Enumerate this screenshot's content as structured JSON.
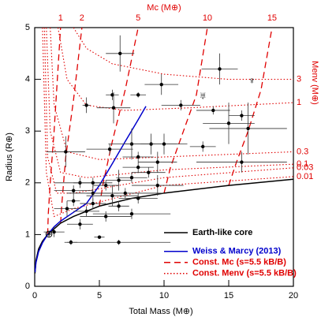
{
  "chart_data": {
    "type": "scatter",
    "xlabel": "Total Mass (M⊕)",
    "ylabel": "Radius (R⊕)",
    "top_label": "Mc (M⊕)",
    "right_label": "Menv (M⊕)",
    "xlim": [
      0,
      20
    ],
    "ylim": [
      0,
      5
    ],
    "xticks": [
      0,
      5,
      10,
      15,
      20
    ],
    "yticks": [
      0,
      1,
      2,
      3,
      4,
      5
    ],
    "legend": "lower right",
    "points": {
      "color": "#000000",
      "x": [
        6.6,
        14.3,
        9.8,
        6.0,
        8.0,
        4.0,
        6.1,
        11.3,
        13.8,
        16.0,
        15.0,
        16.5,
        2.4,
        7.5,
        9.0,
        10.0,
        13.0,
        5.8,
        8.0,
        9.5,
        16.0,
        8.0,
        8.8,
        7.5,
        6.5,
        3.5,
        4.5,
        9.5,
        5.5,
        3.0,
        4.5,
        7.0,
        6.0,
        8.0,
        3.0,
        4.5,
        6.5,
        2.5,
        4.0,
        7.5,
        5.5,
        3.5,
        5.0,
        1.5,
        2.8,
        6.5
      ],
      "values": [
        4.5,
        4.2,
        3.9,
        3.7,
        3.7,
        3.5,
        3.45,
        3.5,
        3.4,
        3.3,
        3.15,
        3.05,
        2.6,
        2.75,
        2.75,
        2.75,
        2.7,
        2.65,
        2.5,
        2.4,
        2.4,
        2.3,
        2.2,
        2.1,
        2.05,
        2.0,
        2.0,
        1.95,
        1.95,
        1.85,
        1.8,
        1.8,
        1.75,
        1.7,
        1.65,
        1.6,
        1.55,
        1.5,
        1.45,
        1.4,
        1.35,
        1.2,
        0.95,
        1.05,
        0.85,
        0.85
      ],
      "xerr": [
        1.1,
        1.4,
        1.3,
        0.5,
        0.6,
        0.3,
        1.3,
        1.5,
        1.3,
        1.0,
        2.0,
        3.0,
        1.5,
        1.8,
        2.0,
        1.8,
        1.0,
        1.8,
        1.2,
        1.5,
        3.5,
        1.2,
        1.3,
        1.2,
        1.0,
        2.0,
        1.5,
        2.0,
        1.0,
        1.5,
        2.0,
        3.0,
        2.0,
        1.5,
        0.5,
        1.0,
        0.8,
        1.0,
        1.0,
        3.0,
        2.0,
        1.0,
        0.4,
        0.8,
        0.5,
        4.0
      ],
      "yerr": [
        0.35,
        0.3,
        0.2,
        0.1,
        0.05,
        0.15,
        0.3,
        0.1,
        0.08,
        0.1,
        0.4,
        0.5,
        0.3,
        0.3,
        0.2,
        0.2,
        0.1,
        0.1,
        0.1,
        0.2,
        0.2,
        0.1,
        0.1,
        0.1,
        0.2,
        0.1,
        0.1,
        0.2,
        0.1,
        0.1,
        0.15,
        0.1,
        0.2,
        0.1,
        0.1,
        0.1,
        0.1,
        0.15,
        0.1,
        0.1,
        0.1,
        0.1,
        0.03,
        0.1,
        0.05,
        0.05
      ]
    },
    "series": [
      {
        "name": "Earth-like core",
        "color": "#000000",
        "style": "solid",
        "x": [
          0.02,
          0.1,
          0.3,
          0.6,
          1,
          2,
          3,
          5,
          7.5,
          10,
          15,
          20
        ],
        "values": [
          0.25,
          0.5,
          0.72,
          0.87,
          1.0,
          1.22,
          1.35,
          1.55,
          1.7,
          1.8,
          1.95,
          2.07
        ]
      },
      {
        "name": "Weiss & Marcy (2013)",
        "color": "#0000cc",
        "style": "solid",
        "x": [
          0.02,
          0.1,
          0.3,
          0.6,
          1,
          1.5,
          2,
          3,
          4,
          5,
          6,
          7,
          8,
          8.6
        ],
        "values": [
          0.27,
          0.46,
          0.67,
          0.84,
          1.0,
          1.15,
          1.26,
          1.43,
          1.6,
          1.95,
          2.37,
          2.8,
          3.22,
          3.48
        ]
      }
    ],
    "mc_curves": {
      "name": "Const. Mc (s=5.5 kB/B)",
      "color": "#e00000",
      "style": "dashed",
      "curves": [
        {
          "label": "1",
          "x": [
            1.0,
            1.05,
            1.2,
            1.5,
            2.0
          ],
          "values": [
            1.0,
            1.4,
            2.0,
            3.0,
            5
          ]
        },
        {
          "label": "2",
          "x": [
            2.0,
            2.1,
            2.4,
            3.0,
            3.65
          ],
          "values": [
            1.22,
            1.6,
            2.5,
            3.6,
            5
          ]
        },
        {
          "label": "5",
          "x": [
            5.0,
            5.3,
            6.0,
            7.0,
            8.0
          ],
          "values": [
            1.55,
            2.0,
            2.8,
            3.8,
            5
          ]
        },
        {
          "label": "10",
          "x": [
            10.0,
            10.5,
            11.5,
            12.5,
            13.35
          ],
          "values": [
            1.8,
            2.3,
            3.0,
            3.7,
            5
          ]
        },
        {
          "label": "15",
          "x": [
            15.0,
            15.6,
            16.5,
            17.5,
            18.35
          ],
          "values": [
            1.95,
            2.4,
            3.0,
            3.8,
            5
          ]
        }
      ]
    },
    "menv_curves": {
      "name": "Const. Menv (s=5.5 kB/B)",
      "color": "#e00000",
      "style": "dotted",
      "curves": [
        {
          "label": "3",
          "x": [
            3.0,
            4,
            6,
            10,
            15,
            20
          ],
          "values": [
            5,
            4.6,
            4.3,
            4.1,
            4.0,
            4.0
          ]
        },
        {
          "label": "1",
          "x": [
            1.8,
            2.5,
            4,
            7,
            12,
            20
          ],
          "values": [
            5,
            4.0,
            3.5,
            3.4,
            3.45,
            3.55
          ]
        },
        {
          "label": "0.3",
          "x": [
            1.2,
            1.5,
            2.5,
            5,
            10,
            20
          ],
          "values": [
            5,
            3.5,
            2.6,
            2.45,
            2.5,
            2.6
          ]
        },
        {
          "label": "0.1",
          "x": [
            0.9,
            1.2,
            2,
            4,
            10,
            20
          ],
          "values": [
            5,
            3.0,
            2.2,
            2.1,
            2.25,
            2.36
          ]
        },
        {
          "label": "0.03",
          "x": [
            0.75,
            1,
            1.7,
            3,
            10,
            20
          ],
          "values": [
            5,
            2.5,
            1.8,
            1.8,
            2.1,
            2.29
          ]
        },
        {
          "label": "0.01",
          "x": [
            0.6,
            0.9,
            1.5,
            3,
            10,
            20
          ],
          "values": [
            5,
            2.2,
            1.35,
            1.5,
            1.95,
            2.12
          ]
        }
      ]
    },
    "symbols": [
      {
        "label": "⊕",
        "x": 1.1,
        "y": 1.0
      },
      {
        "label": "♅",
        "x": 13.0,
        "y": 3.67
      },
      {
        "label": "♆",
        "x": 16.8,
        "y": 3.96
      }
    ]
  }
}
